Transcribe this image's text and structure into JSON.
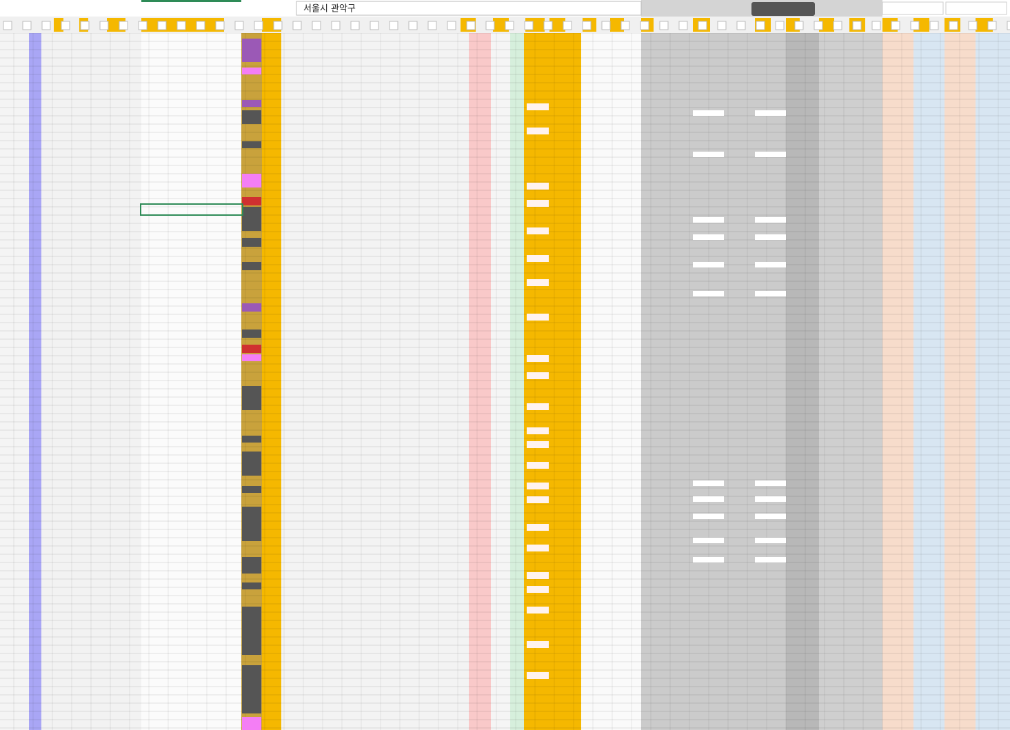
{
  "header": {
    "title": "서울시 관악구"
  }
}
